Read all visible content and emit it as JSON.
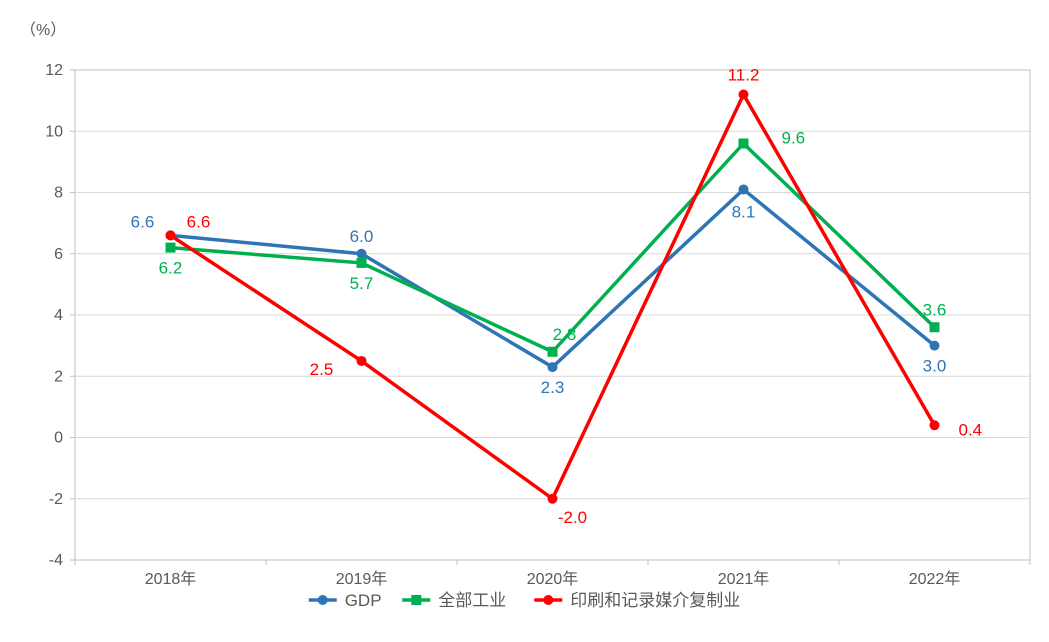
{
  "chart": {
    "type": "line",
    "unit_label": "（%）",
    "background_color": "#ffffff",
    "plot_border_color": "#bfbfbf",
    "grid_color": "#d9d9d9",
    "axis_text_color": "#595959",
    "axis_fontsize": 16,
    "label_fontsize": 17,
    "legend_fontsize": 17,
    "categories": [
      "2018年",
      "2019年",
      "2020年",
      "2021年",
      "2022年"
    ],
    "ylim": [
      -4,
      12
    ],
    "ytick_step": 2,
    "yticks": [
      -4,
      -2,
      0,
      2,
      4,
      6,
      8,
      10,
      12
    ],
    "series": [
      {
        "name": "GDP",
        "color": "#2e75b6",
        "line_width": 3.5,
        "marker": "circle",
        "marker_size": 5,
        "values": [
          6.6,
          6.0,
          2.3,
          8.1,
          3.0
        ],
        "label_positions": [
          "above-left",
          "above",
          "below",
          "below",
          "below"
        ]
      },
      {
        "name": "全部工业",
        "color": "#00b050",
        "line_width": 3.5,
        "marker": "square",
        "marker_size": 5,
        "values": [
          6.2,
          5.7,
          2.8,
          9.6,
          3.6
        ],
        "label_positions": [
          "below",
          "below",
          "above",
          "right",
          "above"
        ]
      },
      {
        "name": "印刷和记录媒介复制业",
        "color": "#ff0000",
        "line_width": 3.5,
        "marker": "circle",
        "marker_size": 5,
        "values": [
          6.6,
          2.5,
          -2.0,
          11.2,
          0.4
        ],
        "label_positions": [
          "above-right",
          "left",
          "below",
          "above",
          "right"
        ]
      }
    ],
    "legend": {
      "position": "bottom",
      "marker_line_length": 28
    }
  }
}
